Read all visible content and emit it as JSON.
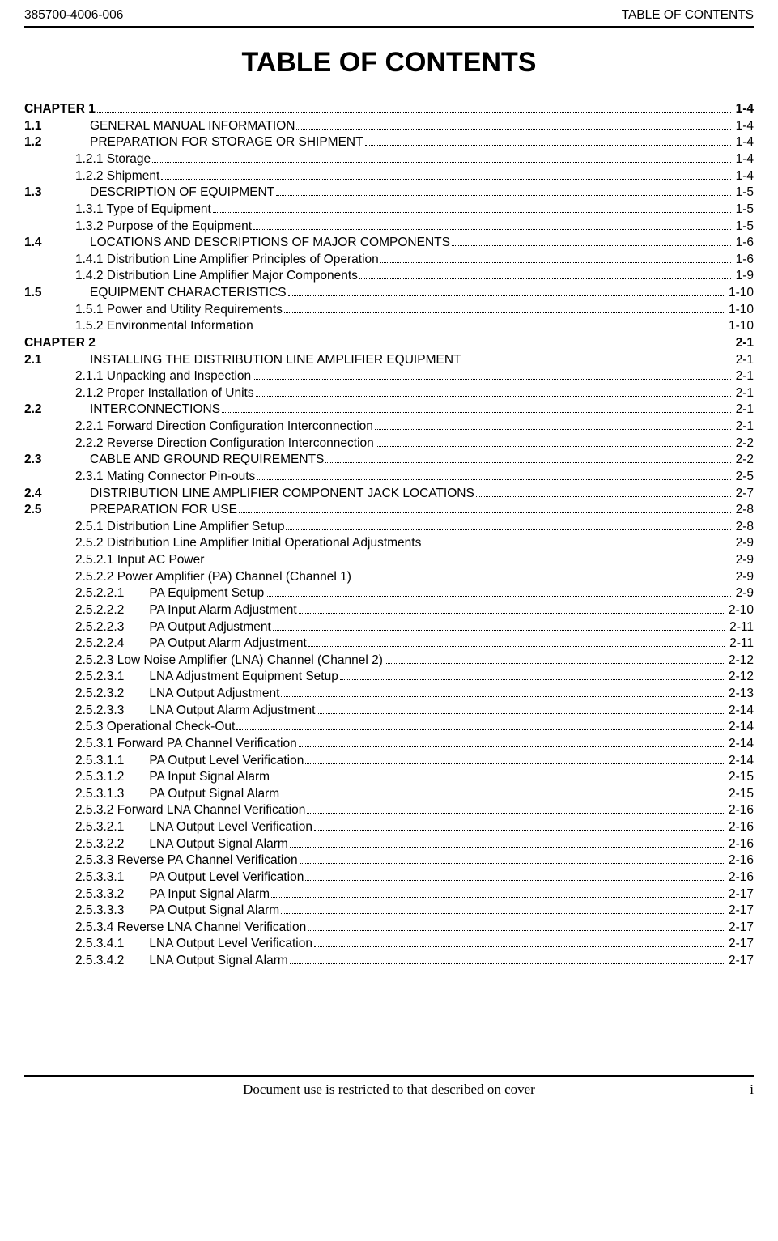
{
  "header": {
    "left": "385700-4006-006",
    "right": "TABLE OF CONTENTS"
  },
  "mainTitle": "TABLE OF CONTENTS",
  "footer": {
    "center": "Document use is restricted to that described on cover",
    "right": "i"
  },
  "toc": [
    {
      "level": 0,
      "bold": true,
      "num": "",
      "title": "CHAPTER 1",
      "page": "1-4"
    },
    {
      "level": 1,
      "num": "1.1",
      "title": "GENERAL MANUAL INFORMATION",
      "page": "1-4"
    },
    {
      "level": 1,
      "num": "1.2",
      "title": "PREPARATION FOR STORAGE OR SHIPMENT",
      "page": "1-4"
    },
    {
      "level": 2,
      "num": "",
      "title": "1.2.1 Storage",
      "page": "1-4"
    },
    {
      "level": 2,
      "num": "",
      "title": "1.2.2 Shipment",
      "page": "1-4"
    },
    {
      "level": 1,
      "num": "1.3",
      "title": "DESCRIPTION OF EQUIPMENT",
      "page": "1-5"
    },
    {
      "level": 2,
      "num": "",
      "title": "1.3.1 Type of Equipment",
      "page": "1-5"
    },
    {
      "level": 2,
      "num": "",
      "title": "1.3.2 Purpose of the Equipment",
      "page": "1-5"
    },
    {
      "level": 1,
      "num": "1.4",
      "title": "LOCATIONS AND DESCRIPTIONS OF MAJOR COMPONENTS",
      "page": "1-6"
    },
    {
      "level": 2,
      "num": "",
      "title": "1.4.1 Distribution Line Amplifier Principles of Operation",
      "page": "1-6"
    },
    {
      "level": 2,
      "num": "",
      "title": "1.4.2 Distribution Line Amplifier Major Components",
      "page": "1-9"
    },
    {
      "level": 1,
      "num": "1.5",
      "title": "EQUIPMENT CHARACTERISTICS",
      "page": "1-10"
    },
    {
      "level": 2,
      "num": "",
      "title": "1.5.1 Power and Utility Requirements",
      "page": "1-10"
    },
    {
      "level": 2,
      "num": "",
      "title": "1.5.2 Environmental Information",
      "page": "1-10"
    },
    {
      "level": 0,
      "bold": true,
      "num": "",
      "title": "CHAPTER 2",
      "page": "2-1"
    },
    {
      "level": 1,
      "num": "2.1",
      "title": "INSTALLING THE DISTRIBUTION LINE AMPLIFIER EQUIPMENT",
      "page": "2-1"
    },
    {
      "level": 2,
      "num": "",
      "title": "2.1.1 Unpacking and Inspection",
      "page": "2-1"
    },
    {
      "level": 2,
      "num": "",
      "title": "2.1.2 Proper Installation of Units",
      "page": "2-1"
    },
    {
      "level": 1,
      "num": "2.2",
      "title": "INTERCONNECTIONS",
      "page": "2-1"
    },
    {
      "level": 2,
      "num": "",
      "title": "2.2.1 Forward Direction Configuration Interconnection",
      "page": "2-1"
    },
    {
      "level": 2,
      "num": "",
      "title": "2.2.2 Reverse Direction Configuration Interconnection",
      "page": "2-2"
    },
    {
      "level": 1,
      "num": "2.3",
      "title": "CABLE AND GROUND REQUIREMENTS",
      "page": "2-2"
    },
    {
      "level": 2,
      "num": "",
      "title": "2.3.1 Mating Connector Pin-outs",
      "page": "2-5"
    },
    {
      "level": 1,
      "num": "2.4",
      "title": "DISTRIBUTION LINE AMPLIFIER COMPONENT JACK LOCATIONS",
      "page": "2-7"
    },
    {
      "level": 1,
      "num": "2.5",
      "title": "PREPARATION FOR USE",
      "page": "2-8"
    },
    {
      "level": 2,
      "num": "",
      "title": "2.5.1 Distribution Line Amplifier Setup",
      "page": "2-8"
    },
    {
      "level": 2,
      "num": "",
      "title": "2.5.2 Distribution Line Amplifier Initial Operational Adjustments",
      "page": "2-9"
    },
    {
      "level": 2,
      "num": "",
      "title": "2.5.2.1  Input AC Power",
      "page": "2-9"
    },
    {
      "level": 2,
      "num": "",
      "title": "2.5.2.2  Power Amplifier (PA) Channel  (Channel 1)",
      "page": "2-9"
    },
    {
      "level": 2,
      "num": "",
      "title": "2.5.2.2.1  PA Equipment Setup",
      "page": "2-9"
    },
    {
      "level": 2,
      "num": "",
      "title": "2.5.2.2.2  PA Input Alarm Adjustment",
      "page": "2-10"
    },
    {
      "level": 2,
      "num": "",
      "title": "2.5.2.2.3  PA Output Adjustment",
      "page": "2-11"
    },
    {
      "level": 2,
      "num": "",
      "title": "2.5.2.2.4  PA Output Alarm Adjustment",
      "page": "2-11"
    },
    {
      "level": 2,
      "num": "",
      "title": "2.5.2.3  Low Noise Amplifier (LNA) Channel (Channel 2)",
      "page": "2-12"
    },
    {
      "level": 2,
      "num": "",
      "title": "2.5.2.3.1  LNA Adjustment Equipment Setup",
      "page": "2-12"
    },
    {
      "level": 2,
      "num": "",
      "title": "2.5.2.3.2  LNA Output Adjustment",
      "page": "2-13"
    },
    {
      "level": 2,
      "num": "",
      "title": "2.5.2.3.3  LNA Output Alarm Adjustment",
      "page": "2-14"
    },
    {
      "level": 2,
      "num": "",
      "title": "2.5.3 Operational Check-Out",
      "page": "2-14"
    },
    {
      "level": 2,
      "num": "",
      "title": "2.5.3.1  Forward PA Channel Verification",
      "page": "2-14"
    },
    {
      "level": 2,
      "num": "",
      "title": "2.5.3.1.1  PA Output Level Verification",
      "page": "2-14"
    },
    {
      "level": 2,
      "num": "",
      "title": "2.5.3.1.2  PA Input Signal Alarm",
      "page": "2-15"
    },
    {
      "level": 2,
      "num": "",
      "title": "2.5.3.1.3  PA Output Signal Alarm",
      "page": "2-15"
    },
    {
      "level": 2,
      "num": "",
      "title": "2.5.3.2  Forward LNA Channel Verification",
      "page": "2-16"
    },
    {
      "level": 2,
      "num": "",
      "title": "2.5.3.2.1  LNA Output Level Verification",
      "page": "2-16"
    },
    {
      "level": 2,
      "num": "",
      "title": "2.5.3.2.2  LNA Output Signal Alarm",
      "page": "2-16"
    },
    {
      "level": 2,
      "num": "",
      "title": "2.5.3.3  Reverse PA Channel Verification",
      "page": "2-16"
    },
    {
      "level": 2,
      "num": "",
      "title": "2.5.3.3.1  PA Output Level Verification",
      "page": "2-16"
    },
    {
      "level": 2,
      "num": "",
      "title": "2.5.3.3.2  PA Input Signal Alarm",
      "page": "2-17"
    },
    {
      "level": 2,
      "num": "",
      "title": "2.5.3.3.3  PA Output Signal Alarm",
      "page": "2-17"
    },
    {
      "level": 2,
      "num": "",
      "title": "2.5.3.4  Reverse LNA Channel Verification",
      "page": "2-17"
    },
    {
      "level": 2,
      "num": "",
      "title": "2.5.3.4.1  LNA Output Level Verification",
      "page": "2-17"
    },
    {
      "level": 2,
      "num": "",
      "title": "2.5.3.4.2  LNA Output Signal Alarm",
      "page": "2-17"
    }
  ]
}
